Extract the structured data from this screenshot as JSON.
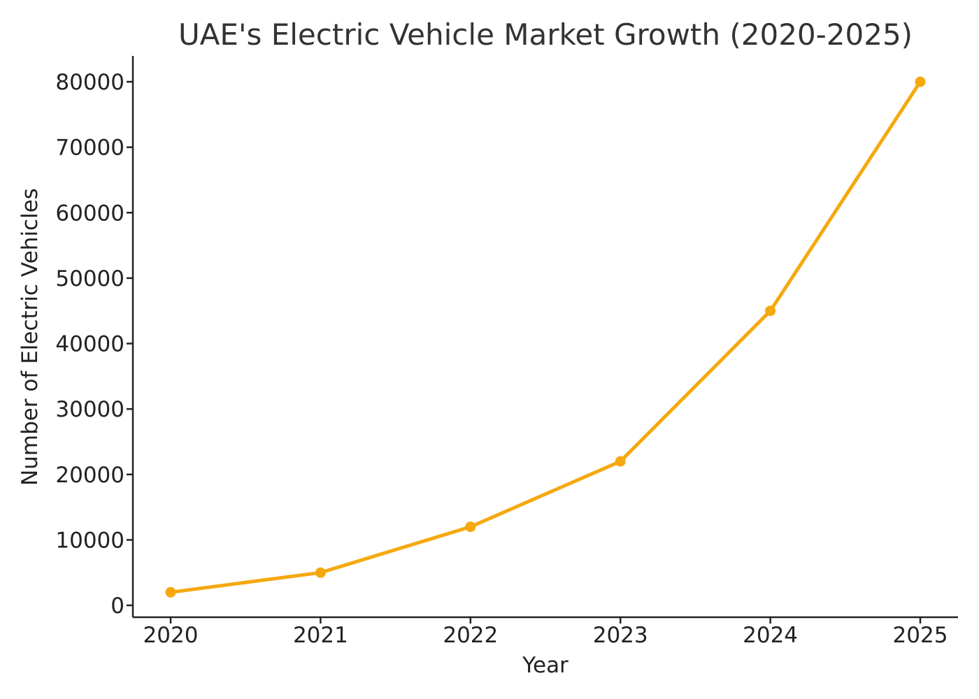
{
  "chart_data": {
    "type": "line",
    "title": "UAE's Electric Vehicle Market Growth (2020-2025)",
    "xlabel": "Year",
    "ylabel": "Number of Electric Vehicles",
    "x": [
      "2020",
      "2021",
      "2022",
      "2023",
      "2024",
      "2025"
    ],
    "series": [
      {
        "values": [
          2000,
          5000,
          12000,
          22000,
          45000,
          80000
        ],
        "color": "#f5a90f",
        "marker": "circle"
      }
    ],
    "y_ticks": [
      0,
      10000,
      20000,
      30000,
      40000,
      50000,
      60000,
      70000,
      80000
    ],
    "ylim": [
      -2000,
      84000
    ],
    "grid": false,
    "legend": "none"
  }
}
